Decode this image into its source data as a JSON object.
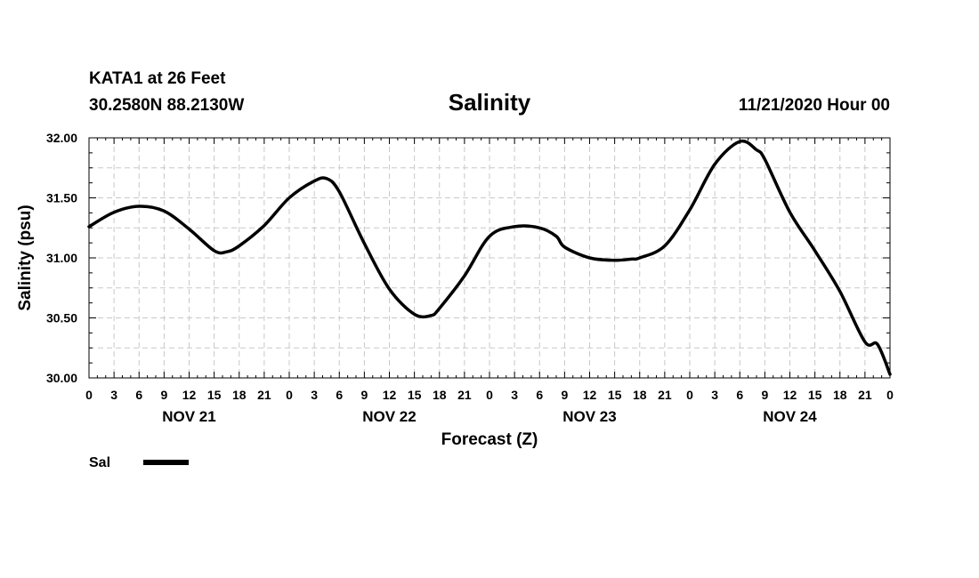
{
  "header": {
    "station": "KATA1 at 26 Feet",
    "coordinates": "30.2580N 88.2130W",
    "title": "Salinity",
    "datetime": "11/21/2020 Hour 00"
  },
  "legend": {
    "label": "Sal",
    "color": "#000000"
  },
  "chart_data": {
    "type": "line",
    "title": "Salinity",
    "xlabel": "Forecast (Z)",
    "ylabel": "Salinity (psu)",
    "ylim": [
      30.0,
      32.0
    ],
    "xlim_hours": [
      0,
      96
    ],
    "y_ticks": [
      "30.00",
      "30.50",
      "31.00",
      "31.50",
      "32.00"
    ],
    "x_tick_labels": [
      "0",
      "3",
      "6",
      "9",
      "12",
      "15",
      "18",
      "21",
      "0",
      "3",
      "6",
      "9",
      "12",
      "15",
      "18",
      "21",
      "0",
      "3",
      "6",
      "9",
      "12",
      "15",
      "18",
      "21",
      "0",
      "3",
      "6",
      "9",
      "12",
      "15",
      "18",
      "21",
      "0"
    ],
    "day_labels": [
      "NOV 21",
      "NOV 22",
      "NOV 23",
      "NOV 24"
    ],
    "grid": true,
    "legend_position": "bottom-left",
    "series": [
      {
        "name": "Sal",
        "color": "#000000",
        "x_hours": [
          0,
          3,
          6,
          9,
          12,
          15,
          16.5,
          18,
          21,
          24,
          27,
          28.5,
          30,
          33,
          36,
          39,
          41,
          42,
          45,
          48,
          51,
          54,
          56,
          57,
          60,
          63,
          65,
          66,
          69,
          72,
          75,
          78,
          80,
          81,
          84,
          87,
          90,
          93,
          94.5,
          96
        ],
        "values": [
          31.26,
          31.38,
          31.43,
          31.39,
          31.24,
          31.06,
          31.05,
          31.1,
          31.27,
          31.5,
          31.64,
          31.66,
          31.55,
          31.12,
          30.74,
          30.53,
          30.52,
          30.58,
          30.85,
          31.18,
          31.26,
          31.25,
          31.18,
          31.09,
          31.0,
          30.98,
          30.99,
          31.0,
          31.1,
          31.4,
          31.78,
          31.97,
          31.9,
          31.82,
          31.38,
          31.06,
          30.72,
          30.3,
          30.28,
          30.03
        ]
      }
    ]
  }
}
